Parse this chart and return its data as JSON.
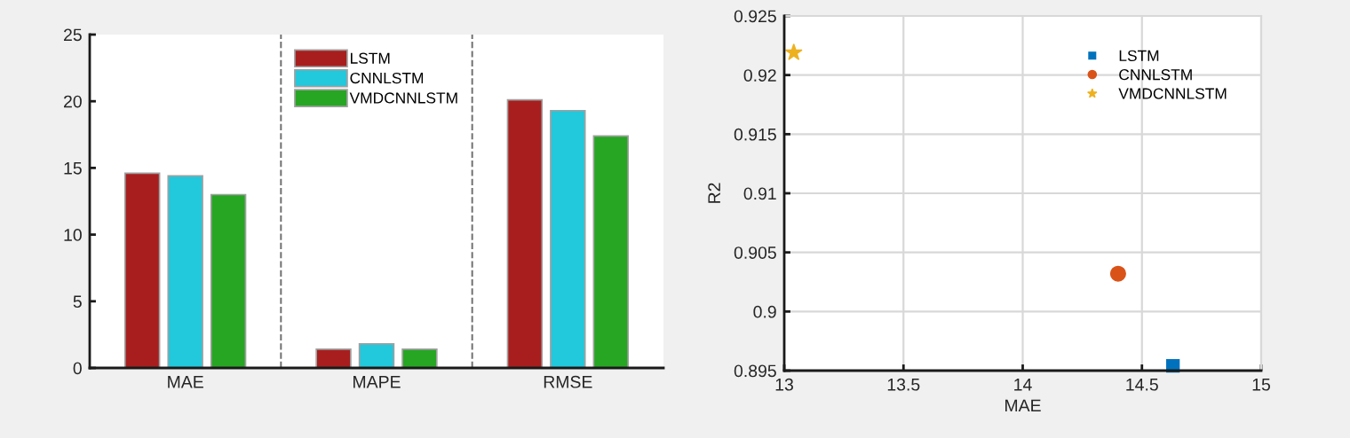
{
  "chart_data": [
    {
      "type": "bar",
      "categories": [
        "MAE",
        "MAPE",
        "RMSE"
      ],
      "ylim": [
        0,
        25
      ],
      "yticks": [
        0,
        5,
        10,
        15,
        20,
        25
      ],
      "series": [
        {
          "name": "LSTM",
          "color": "#a81e1e",
          "values": [
            14.6,
            1.4,
            20.1
          ]
        },
        {
          "name": "CNNLSTM",
          "color": "#22c8dc",
          "values": [
            14.4,
            1.8,
            19.3
          ]
        },
        {
          "name": "VMDCNNLSTM",
          "color": "#27a624",
          "values": [
            13.0,
            1.4,
            17.4
          ]
        }
      ],
      "legend": "top"
    },
    {
      "type": "scatter",
      "xlabel": "MAE",
      "ylabel": "R2",
      "xlim": [
        13,
        15
      ],
      "xticks": [
        13,
        13.5,
        14,
        14.5,
        15
      ],
      "ylim": [
        0.895,
        0.925
      ],
      "yticks": [
        0.895,
        0.9,
        0.905,
        0.91,
        0.915,
        0.92,
        0.925
      ],
      "series": [
        {
          "name": "LSTM",
          "color": "#0072bd",
          "marker": "square",
          "x": [
            14.63
          ],
          "values": [
            0.8954
          ]
        },
        {
          "name": "CNNLSTM",
          "color": "#d95319",
          "marker": "circle",
          "x": [
            14.4
          ],
          "values": [
            0.9032
          ]
        },
        {
          "name": "VMDCNNLSTM",
          "color": "#edb120",
          "marker": "star",
          "x": [
            13.04
          ],
          "values": [
            0.9219
          ]
        }
      ],
      "grid": true,
      "legend": "top right"
    }
  ]
}
